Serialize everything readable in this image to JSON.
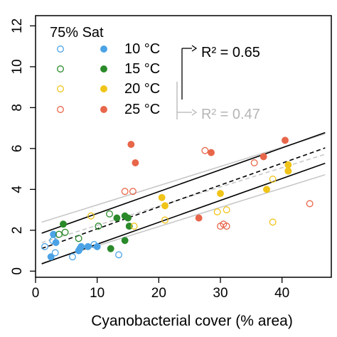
{
  "chart_data": {
    "type": "scatter",
    "title": "",
    "xlabel": "Cyanobacterial cover (% area)",
    "ylabel": "",
    "xlim": [
      0,
      48
    ],
    "ylim": [
      -0.3,
      12.5
    ],
    "xticks": [
      "0",
      "10",
      "20",
      "30",
      "40"
    ],
    "yticks": [
      "0",
      "2",
      "4",
      "6",
      "8",
      "10",
      "12"
    ],
    "grid": false,
    "legend": {
      "title": "75% Sat",
      "placement": "top-left",
      "entries": [
        {
          "label": "10 °C",
          "color": "#4ba3e6"
        },
        {
          "label": "15 °C",
          "color": "#2a8a2a"
        },
        {
          "label": "20 °C",
          "color": "#f0c419"
        },
        {
          "label": "25 °C",
          "color": "#e8664a"
        }
      ]
    },
    "annotations": [
      {
        "text": "R² = 0.65",
        "color": "#000000"
      },
      {
        "text": "R² = 0.47",
        "color": "#b5b5b5"
      }
    ],
    "fits": [
      {
        "id": "black",
        "color": "#000000",
        "intercept": 1.0,
        "slope": 0.107,
        "band": 0.75
      },
      {
        "id": "grey",
        "color": "#c8c8c8",
        "intercept": 1.3,
        "slope": 0.094,
        "band": 1.0
      }
    ],
    "series": [
      {
        "name": "10 °C",
        "color": "#4ba3e6",
        "filled": false,
        "points": [
          [
            1.5,
            1.2
          ],
          [
            2.8,
            1.5
          ],
          [
            3.2,
            0.9
          ],
          [
            6.0,
            0.7
          ],
          [
            7.2,
            1.1
          ],
          [
            9.5,
            1.3
          ],
          [
            13.5,
            0.8
          ]
        ]
      },
      {
        "name": "10 °C",
        "color": "#4ba3e6",
        "filled": true,
        "points": [
          [
            2.5,
            0.7
          ],
          [
            2.9,
            1.8
          ],
          [
            3.3,
            1.4
          ],
          [
            7.0,
            1.0
          ],
          [
            7.4,
            1.2
          ],
          [
            8.5,
            1.2
          ],
          [
            10.0,
            1.2
          ]
        ]
      },
      {
        "name": "15 °C",
        "color": "#2a8a2a",
        "filled": false,
        "points": [
          [
            3.8,
            1.8
          ],
          [
            4.8,
            1.9
          ],
          [
            7.0,
            1.6
          ],
          [
            10.2,
            2.2
          ],
          [
            12.0,
            2.8
          ]
        ]
      },
      {
        "name": "15 °C",
        "color": "#2a8a2a",
        "filled": true,
        "points": [
          [
            4.5,
            2.3
          ],
          [
            12.2,
            1.1
          ],
          [
            13.2,
            2.6
          ],
          [
            14.5,
            2.7
          ],
          [
            15.2,
            2.2
          ],
          [
            15.0,
            2.6
          ],
          [
            14.5,
            1.5
          ]
        ]
      },
      {
        "name": "20 °C",
        "color": "#f0c419",
        "filled": false,
        "points": [
          [
            9.0,
            2.7
          ],
          [
            16.0,
            2.2
          ],
          [
            21.0,
            2.5
          ],
          [
            29.5,
            2.9
          ],
          [
            31.0,
            3.0
          ],
          [
            38.5,
            2.4
          ],
          [
            38.5,
            4.5
          ],
          [
            41.0,
            4.9
          ]
        ]
      },
      {
        "name": "20 °C",
        "color": "#f0c419",
        "filled": true,
        "points": [
          [
            20.5,
            3.6
          ],
          [
            21.0,
            3.2
          ],
          [
            30.0,
            3.8
          ],
          [
            37.5,
            4.0
          ],
          [
            41.0,
            4.9
          ],
          [
            41.0,
            5.2
          ]
        ]
      },
      {
        "name": "25 °C",
        "color": "#e8664a",
        "filled": false,
        "points": [
          [
            14.5,
            3.9
          ],
          [
            15.8,
            3.9
          ],
          [
            27.5,
            5.9
          ],
          [
            30.0,
            2.2
          ],
          [
            30.5,
            2.3
          ],
          [
            31.0,
            2.2
          ],
          [
            35.5,
            5.3
          ],
          [
            44.5,
            3.3
          ]
        ]
      },
      {
        "name": "25 °C",
        "color": "#e8664a",
        "filled": true,
        "points": [
          [
            15.5,
            6.2
          ],
          [
            16.2,
            5.3
          ],
          [
            26.5,
            2.6
          ],
          [
            28.5,
            5.8
          ],
          [
            37.0,
            5.6
          ],
          [
            40.5,
            6.4
          ]
        ]
      }
    ]
  }
}
